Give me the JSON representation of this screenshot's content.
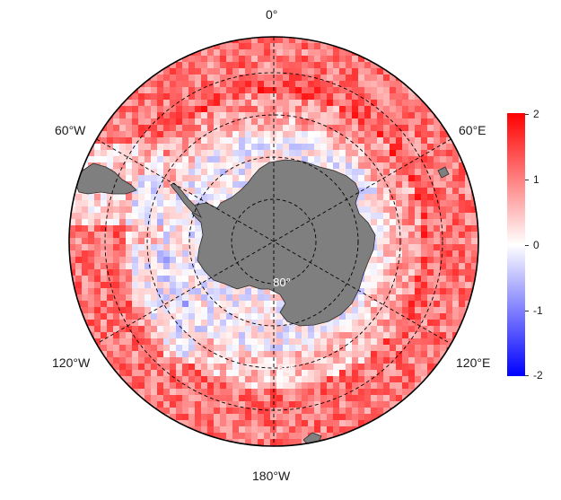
{
  "map": {
    "projection": "south polar stereographic",
    "longitude_labels": {
      "top": "0°",
      "top_left": "60°W",
      "top_right": "60°E",
      "bottom_left": "120°W",
      "bottom_right": "120°E",
      "bottom": "180°W"
    },
    "latitude_labels": [
      "80°",
      "60°"
    ],
    "land_color": "#7f7f7f",
    "colorbar": {
      "min": -2,
      "max": 2,
      "ticks": [
        "2",
        "1",
        "0",
        "-1",
        "-2"
      ],
      "colors": {
        "low": "#0000ff",
        "mid": "#ffffff",
        "high": "#ff0000"
      }
    }
  }
}
